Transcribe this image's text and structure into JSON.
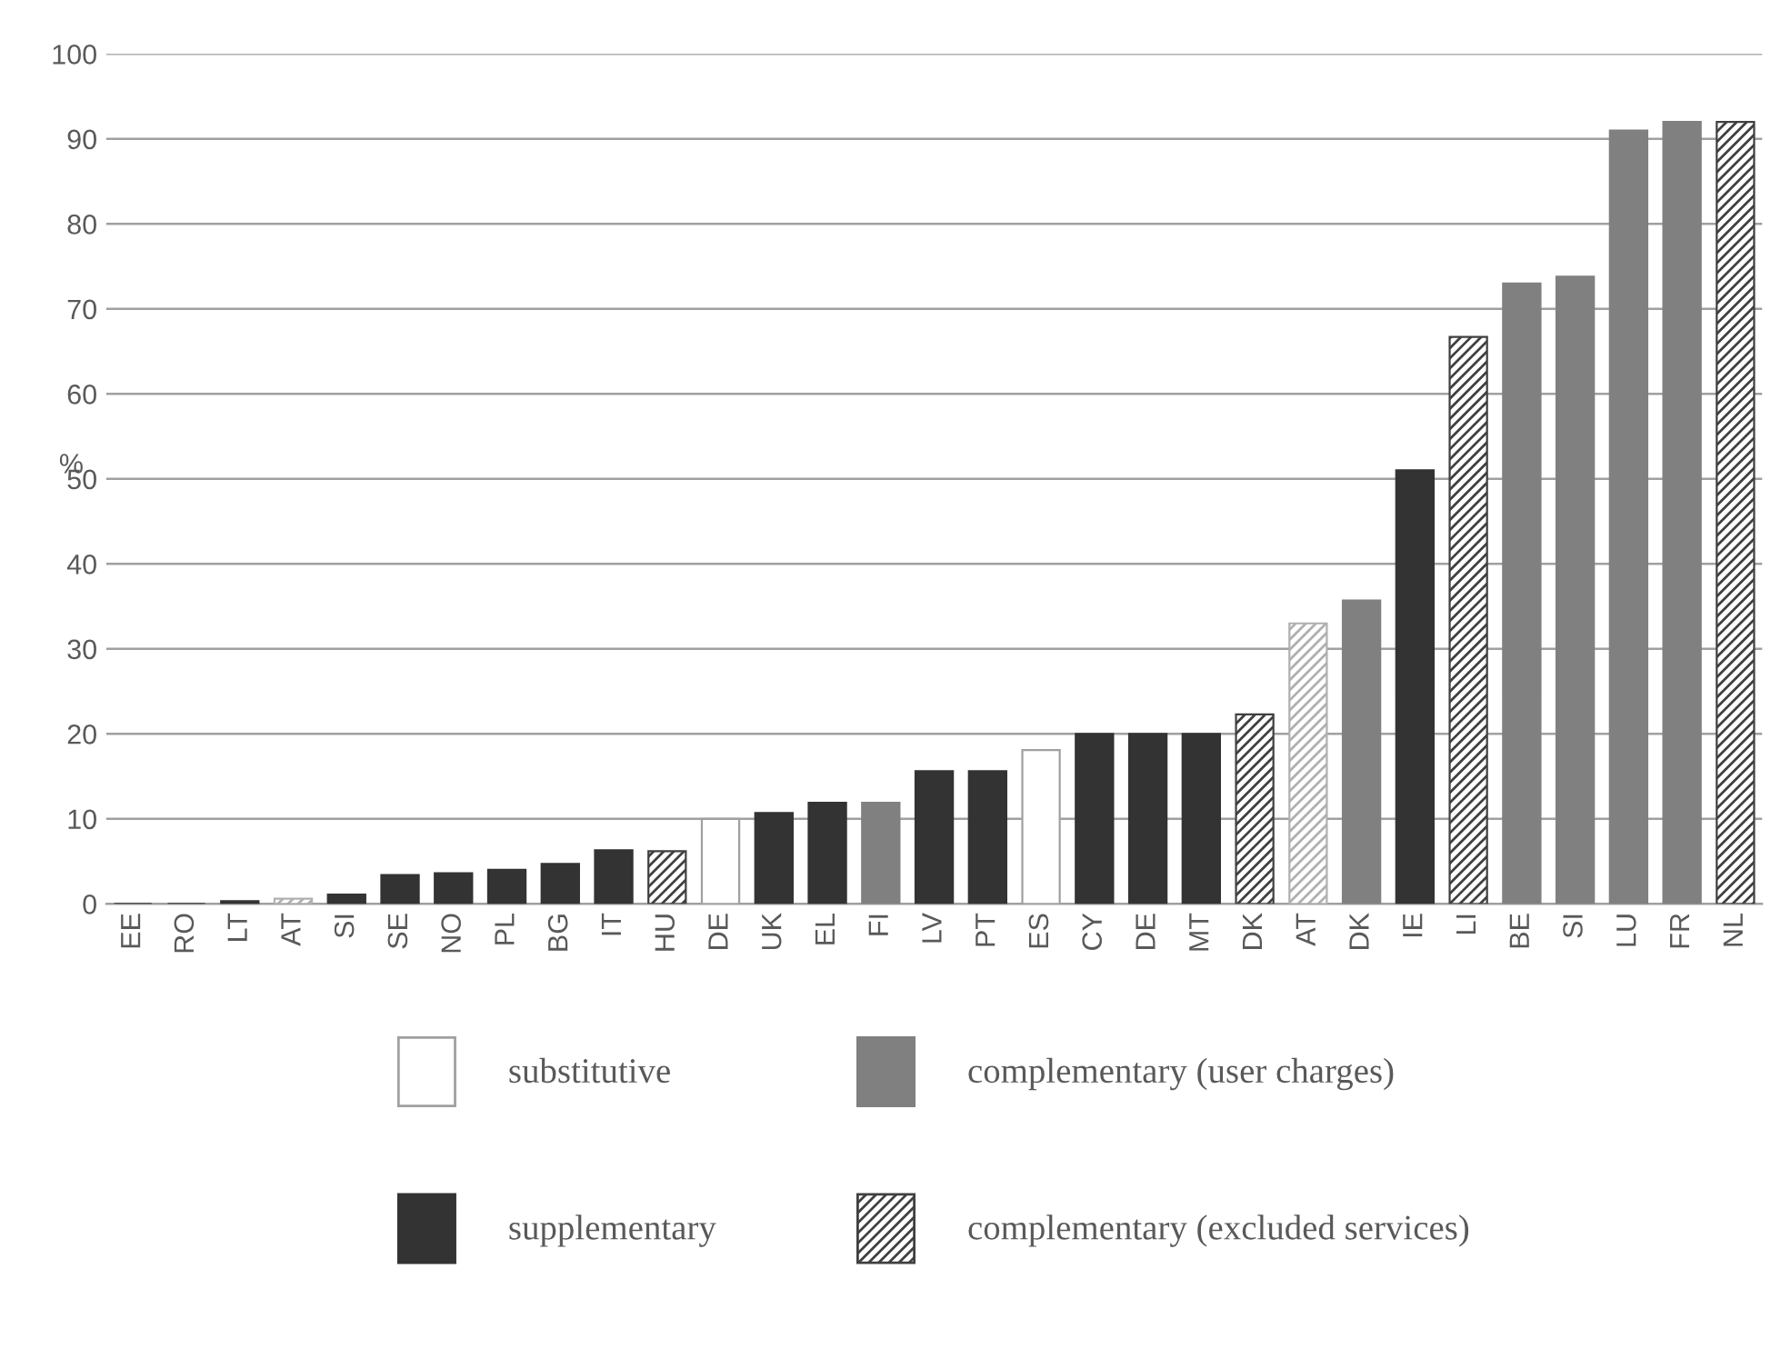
{
  "chart_data": {
    "type": "bar",
    "ylabel": "%",
    "categories": [
      "EE",
      "RO",
      "LT",
      "AT",
      "SI",
      "SE",
      "NO",
      "PL",
      "BG",
      "IT",
      "HU",
      "DE",
      "UK",
      "EL",
      "FI",
      "LV",
      "PT",
      "ES",
      "CY",
      "DE",
      "MT",
      "DK",
      "AT",
      "DK",
      "IE",
      "LI",
      "BE",
      "SI",
      "LU",
      "FR",
      "NL"
    ],
    "series": [
      {
        "name": "substitutive",
        "color": "#ffffff",
        "values": [
          null,
          null,
          null,
          null,
          null,
          null,
          null,
          null,
          null,
          null,
          null,
          10,
          null,
          null,
          null,
          null,
          null,
          18.1,
          null,
          null,
          null,
          null,
          null,
          null,
          null,
          null,
          null,
          null,
          null,
          null,
          null
        ]
      },
      {
        "name": "complementary (user charges)",
        "color": "#808080",
        "values": [
          null,
          null,
          null,
          null,
          null,
          null,
          null,
          null,
          null,
          null,
          null,
          null,
          null,
          null,
          11.9,
          null,
          null,
          null,
          null,
          null,
          null,
          null,
          null,
          35.7,
          null,
          null,
          73,
          73.8,
          91,
          92,
          null
        ]
      },
      {
        "name": "supplementary",
        "color": "#333333",
        "values": [
          0,
          0,
          0.3,
          null,
          1.1,
          3.4,
          3.6,
          4,
          4.7,
          6.3,
          null,
          null,
          10.7,
          11.9,
          null,
          15.6,
          15.6,
          null,
          20,
          20,
          20,
          null,
          null,
          null,
          51,
          null,
          null,
          null,
          null,
          null,
          null
        ]
      },
      {
        "name": "complementary (excluded services)",
        "color": "#404040",
        "colors": [
          null,
          null,
          null,
          "#b0b0b0",
          null,
          null,
          null,
          null,
          null,
          null,
          "#404040",
          null,
          null,
          null,
          null,
          null,
          null,
          null,
          null,
          null,
          null,
          "#404040",
          "#b0b0b0",
          null,
          null,
          "#404040",
          null,
          null,
          null,
          null,
          "#404040"
        ],
        "values": [
          null,
          null,
          null,
          0.6,
          null,
          null,
          null,
          null,
          null,
          null,
          6.2,
          null,
          null,
          null,
          null,
          null,
          null,
          null,
          null,
          null,
          null,
          22.3,
          33,
          null,
          null,
          66.7,
          null,
          null,
          null,
          null,
          92
        ]
      }
    ],
    "ylim": [
      0,
      100
    ],
    "yticks": [
      0,
      10,
      20,
      30,
      40,
      50,
      60,
      70,
      80,
      90,
      100
    ],
    "grid": "y",
    "legend": "bottom"
  }
}
